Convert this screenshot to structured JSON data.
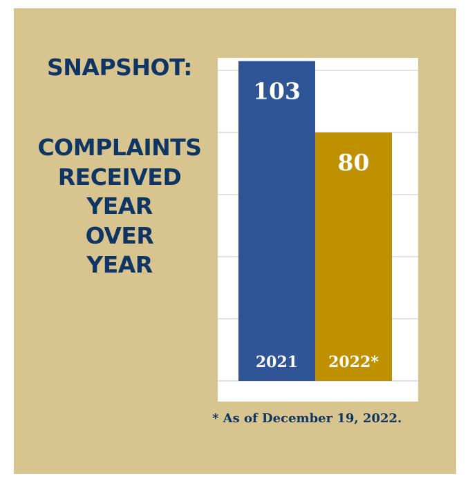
{
  "heading": {
    "line1": "SNAPSHOT:",
    "lines": [
      "COMPLAINTS",
      "RECEIVED",
      "YEAR",
      "OVER",
      "YEAR"
    ]
  },
  "footnote": "* As of December 19, 2022.",
  "colors": {
    "background": "#D8C48F",
    "title_text": "#0E3563",
    "bar_2021": "#2F5597",
    "bar_2022": "#BF9000",
    "plot_background": "#FFFFFF",
    "gridline": "#D9D9D9"
  },
  "chart_data": {
    "type": "bar",
    "categories": [
      "2021",
      "2022*"
    ],
    "values": [
      103,
      80
    ],
    "value_labels": [
      "103",
      "80"
    ],
    "ylim": [
      0,
      120
    ],
    "grid": true,
    "legend": "none"
  }
}
